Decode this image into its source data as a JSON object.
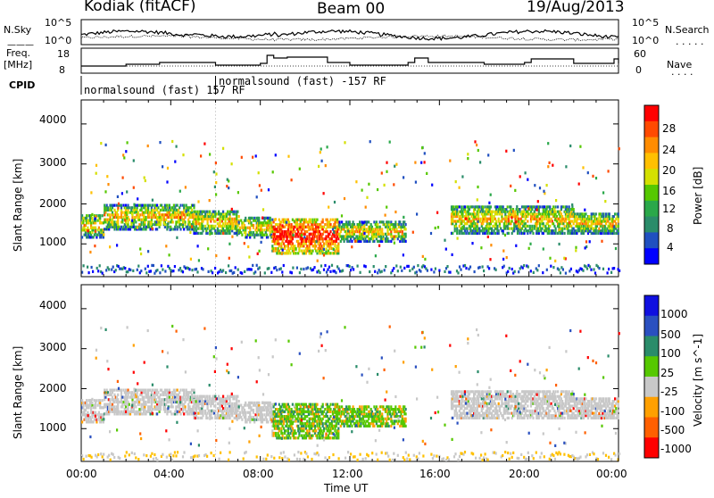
{
  "header": {
    "radar": "Kodiak (fitACF)",
    "beam": "Beam 00",
    "date": "19/Aug/2013"
  },
  "top_panel": {
    "left_label": "N.Sky",
    "right_label": "N.Search",
    "left_ticks": [
      "10^5",
      "10^0"
    ],
    "right_ticks": [
      "10^5",
      "10^0"
    ]
  },
  "freq_panel": {
    "left_label_1": "Freq.",
    "left_label_2": "[MHz]",
    "right_label": "Nave",
    "left_ticks": [
      "18",
      "8"
    ],
    "right_ticks": [
      "60",
      "0"
    ]
  },
  "cpid": {
    "label": "CPID",
    "segments": [
      "normalsound (fast) 157 RF",
      "normalsound (fast) -157 RF"
    ]
  },
  "axes": {
    "ylabel": "Slant Range [km]",
    "xlabel": "Time UT",
    "y_ticks": [
      "4000",
      "3000",
      "2000",
      "1000"
    ],
    "x_ticks": [
      "00:00",
      "04:00",
      "08:00",
      "12:00",
      "16:00",
      "20:00",
      "00:00"
    ]
  },
  "power_colorbar": {
    "title": "Power [dB]",
    "ticks": [
      "28",
      "24",
      "20",
      "16",
      "12",
      "8",
      "4"
    ],
    "colors": [
      "#ff0000",
      "#ff4a00",
      "#ff8c00",
      "#ffc000",
      "#d4e000",
      "#56c800",
      "#2aa84a",
      "#2a8c6a",
      "#2050c0",
      "#0000ff"
    ]
  },
  "velocity_colorbar": {
    "title": "Velocity [m s^-1]",
    "ticks": [
      "1000",
      "500",
      "100",
      "25",
      "-25",
      "-100",
      "-500",
      "-1000"
    ],
    "colors": [
      "#1010e0",
      "#2a50c0",
      "#2a8c6a",
      "#56c800",
      "#c8c8c8",
      "#ffa000",
      "#ff6000",
      "#ff0000"
    ]
  },
  "chart_data": {
    "type": "heatmap",
    "x_range_hours": [
      0,
      24
    ],
    "y_range_km": [
      180,
      4600
    ],
    "x_ticks": [
      "00:00",
      "04:00",
      "08:00",
      "12:00",
      "16:00",
      "20:00",
      "00:00"
    ],
    "y_ticks": [
      1000,
      2000,
      3000,
      4000
    ],
    "xlabel": "Time UT",
    "ylabel": "Slant Range [km]",
    "panels": [
      "Power [dB]",
      "Velocity [m s^-1]"
    ],
    "echo_bands": [
      {
        "start_h": 0.0,
        "end_h": 1.0,
        "low_km": 1200,
        "high_km": 1800
      },
      {
        "start_h": 1.0,
        "end_h": 5.0,
        "low_km": 1400,
        "high_km": 2050
      },
      {
        "start_h": 5.0,
        "end_h": 7.0,
        "low_km": 1300,
        "high_km": 1900
      },
      {
        "start_h": 7.0,
        "end_h": 8.5,
        "low_km": 1200,
        "high_km": 1700
      },
      {
        "start_h": 8.5,
        "end_h": 11.5,
        "low_km": 800,
        "high_km": 1700
      },
      {
        "start_h": 11.5,
        "end_h": 14.5,
        "low_km": 1100,
        "high_km": 1600
      },
      {
        "start_h": 16.5,
        "end_h": 22.0,
        "low_km": 1300,
        "high_km": 2000
      },
      {
        "start_h": 22.0,
        "end_h": 24.0,
        "low_km": 1300,
        "high_km": 1800
      }
    ],
    "power_range_db": [
      0,
      32
    ],
    "velocity_range_ms": [
      -1000,
      1000
    ]
  }
}
